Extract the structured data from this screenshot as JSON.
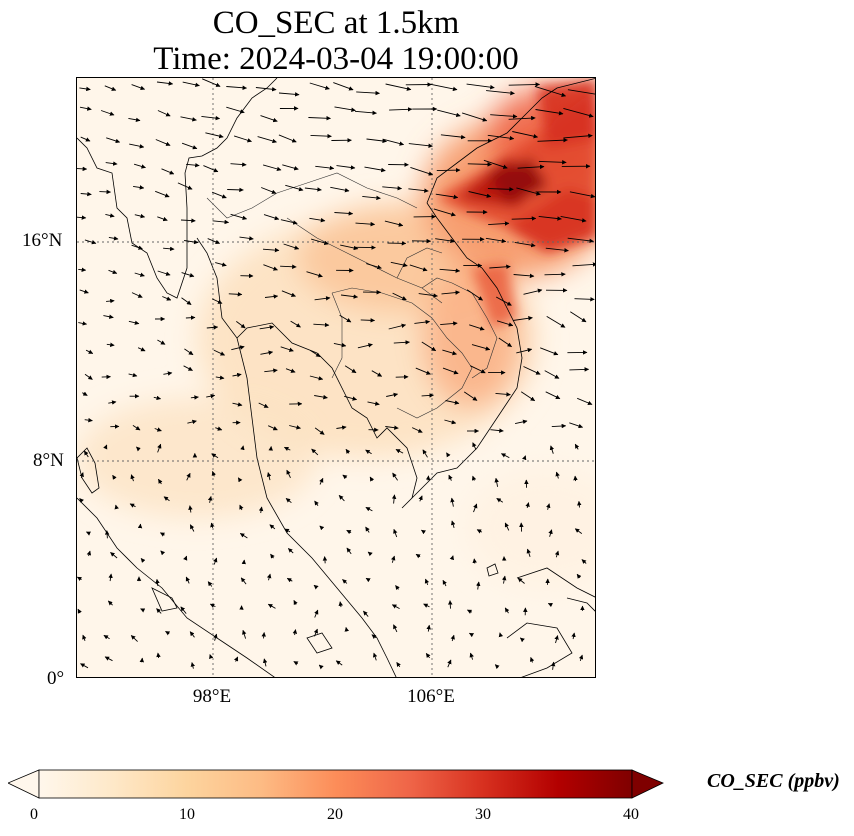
{
  "figure": {
    "title_line1": "CO_SEC at 1.5km",
    "title_line2": "Time: 2024-03-04 19:00:00"
  },
  "map": {
    "projection": "PlateCarree",
    "extent_lon": [
      91,
      115
    ],
    "extent_lat": [
      0,
      22
    ],
    "gridlines": "dotted",
    "lat_ticks": [
      {
        "value": 16,
        "label": "16°N"
      },
      {
        "value": 8,
        "label": "8°N"
      },
      {
        "value": 0,
        "label": "0°"
      }
    ],
    "lon_ticks": [
      {
        "value": 98,
        "label": "98°E"
      },
      {
        "value": 106,
        "label": "106°E"
      }
    ],
    "field": "CO_SEC",
    "wind_vectors": "shown",
    "high_concentration_region": "Gulf of Tonkin / northern Vietnam"
  },
  "colorbar": {
    "cmap": "OrRd",
    "range": [
      0,
      40
    ],
    "extend": "both",
    "ticks": [
      "0",
      "10",
      "20",
      "30",
      "40"
    ],
    "label": "CO_SEC (ppbv)",
    "colors": [
      "#fff7ec",
      "#fee8c8",
      "#fdd49e",
      "#fdbb84",
      "#fc8d59",
      "#ef6548",
      "#d7301f",
      "#b30000",
      "#7f0000"
    ]
  }
}
